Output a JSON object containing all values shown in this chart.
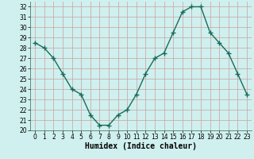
{
  "x": [
    0,
    1,
    2,
    3,
    4,
    5,
    6,
    7,
    8,
    9,
    10,
    11,
    12,
    13,
    14,
    15,
    16,
    17,
    18,
    19,
    20,
    21,
    22,
    23
  ],
  "y": [
    28.5,
    28.0,
    27.0,
    25.5,
    24.0,
    23.5,
    21.5,
    20.5,
    20.5,
    21.5,
    22.0,
    23.5,
    25.5,
    27.0,
    27.5,
    29.5,
    31.5,
    32.0,
    32.0,
    29.5,
    28.5,
    27.5,
    25.5,
    23.5
  ],
  "xlabel": "Humidex (Indice chaleur)",
  "ylim": [
    20,
    32.5
  ],
  "xlim": [
    -0.5,
    23.5
  ],
  "yticks": [
    20,
    21,
    22,
    23,
    24,
    25,
    26,
    27,
    28,
    29,
    30,
    31,
    32
  ],
  "xticks": [
    0,
    1,
    2,
    3,
    4,
    5,
    6,
    7,
    8,
    9,
    10,
    11,
    12,
    13,
    14,
    15,
    16,
    17,
    18,
    19,
    20,
    21,
    22,
    23
  ],
  "line_color": "#1a6b5a",
  "marker": "+",
  "bg_color": "#cff0ee",
  "grid_color": "#c9a0a0",
  "tick_label_fontsize": 5.5,
  "xlabel_fontsize": 7.0,
  "marker_size": 4,
  "linewidth": 1.0
}
